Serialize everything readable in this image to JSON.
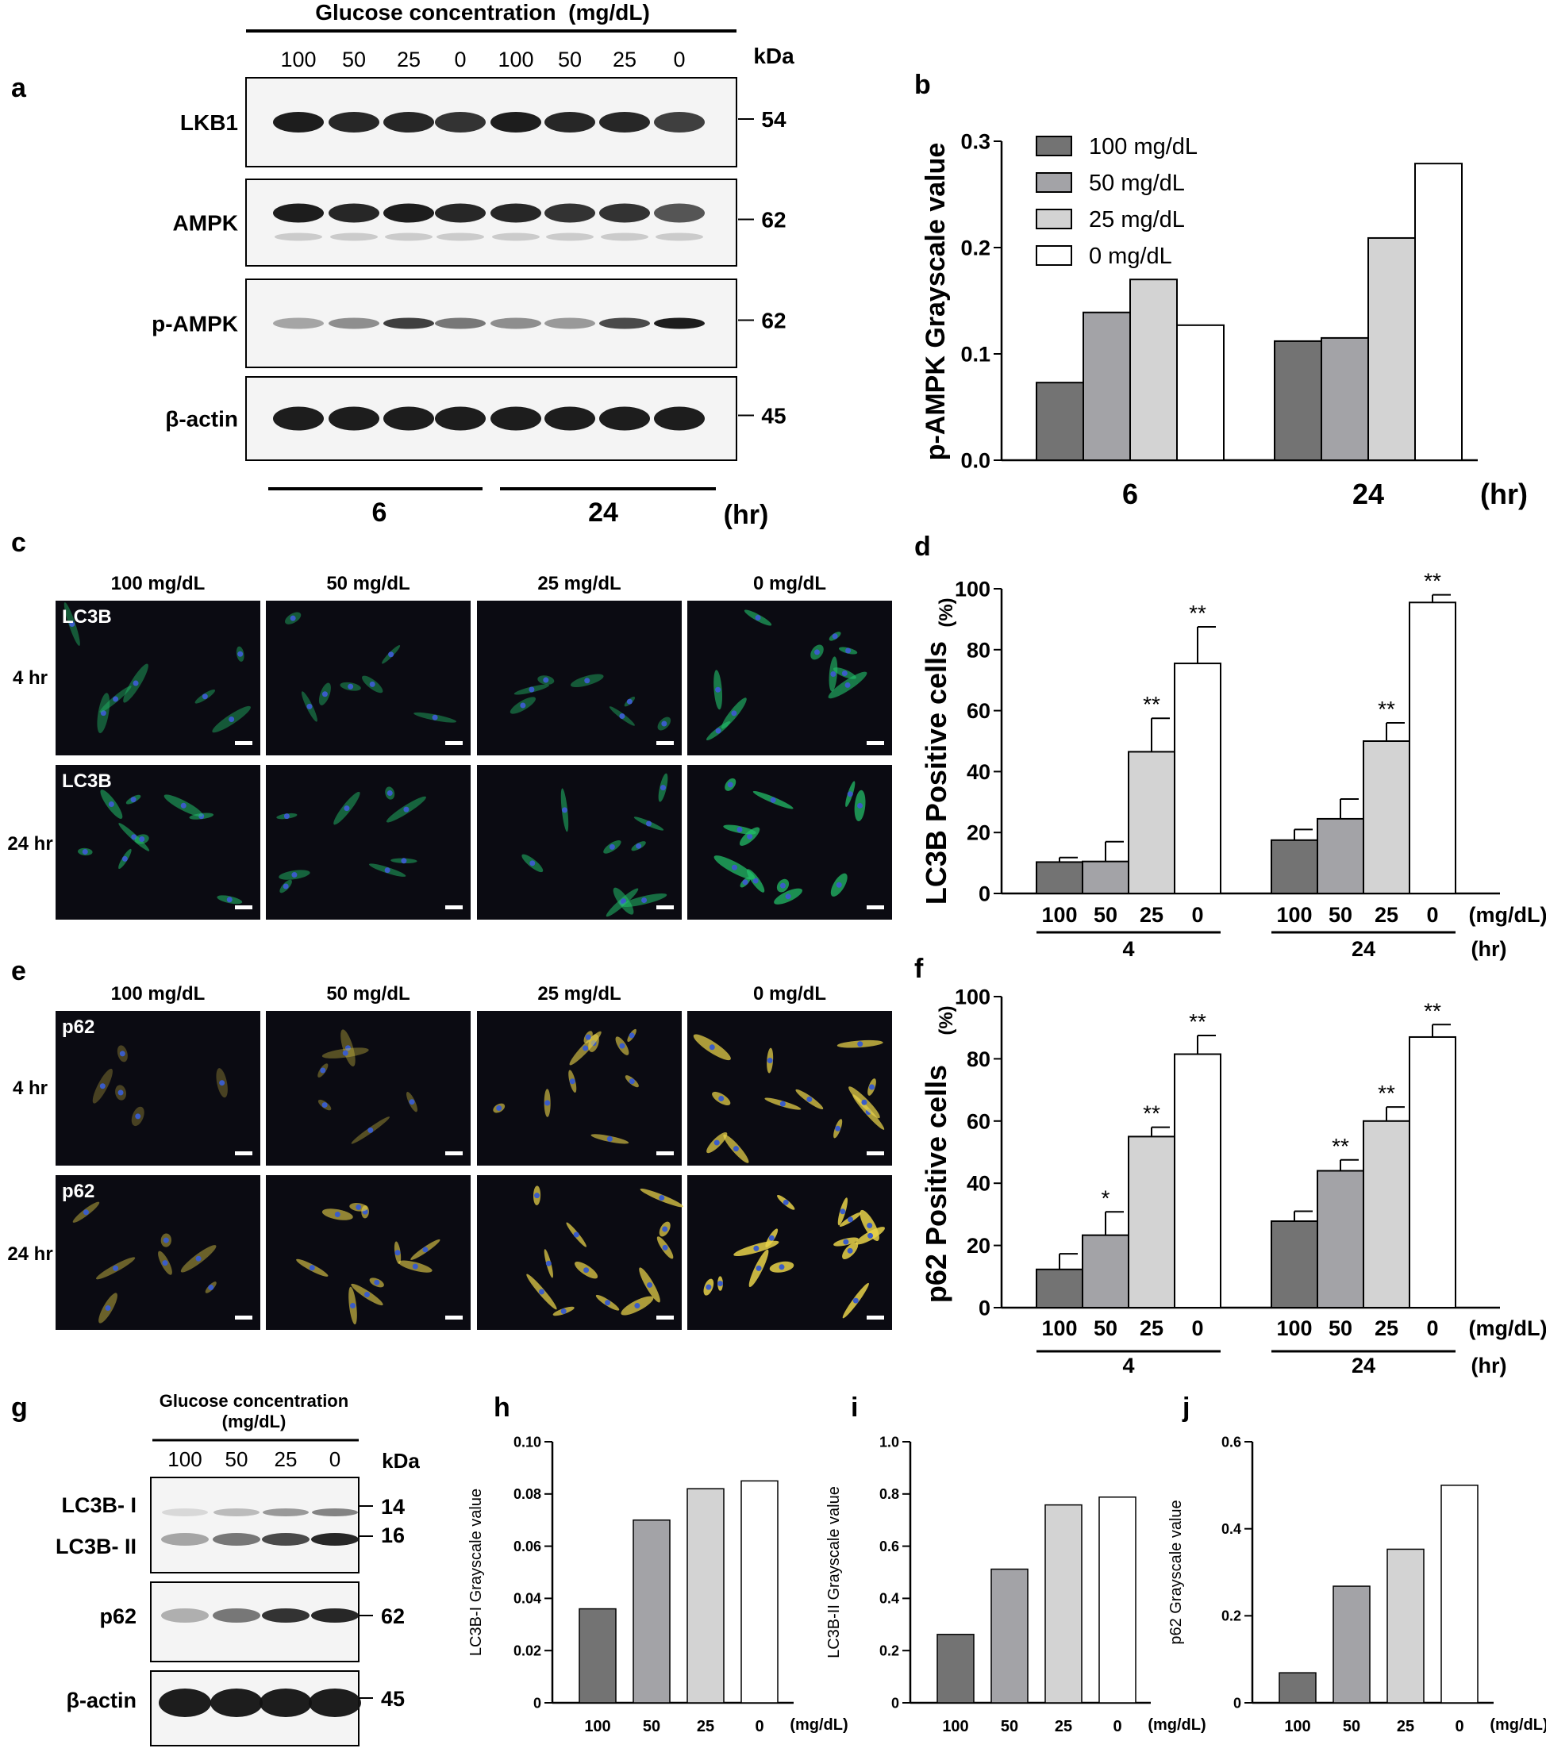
{
  "palette": {
    "bar_fills": [
      "#737373",
      "#a3a3a7",
      "#d3d3d3",
      "#ffffff"
    ],
    "blot_background": "#f4f4f4",
    "blot_band": "#111111",
    "micrograph_background": "#0b0b12",
    "lc3b_stain": "#22c06a",
    "nucleus_stain": "#3a5cc8",
    "p62_stain": "#e8d24a"
  },
  "panels": {
    "a": "a",
    "b": "b",
    "c": "c",
    "d": "d",
    "e": "e",
    "f": "f",
    "g": "g",
    "h": "h",
    "i": "i",
    "j": "j"
  },
  "blot_a": {
    "header": "Glucose concentration  (mg/dL)",
    "lanes": [
      "100",
      "50",
      "25",
      "0",
      "100",
      "50",
      "25",
      "0"
    ],
    "kda_label": "kDa",
    "rows": [
      {
        "name": "LKB1",
        "kda": "54"
      },
      {
        "name": "AMPK",
        "kda": "62"
      },
      {
        "name": "p-AMPK",
        "kda": "62"
      },
      {
        "name": "β-actin",
        "kda": "45"
      }
    ],
    "time_groups": [
      "6",
      "24"
    ],
    "time_unit": "(hr)"
  },
  "micro_c": {
    "columns": [
      "100 mg/dL",
      "50 mg/dL",
      "25 mg/dL",
      "0 mg/dL"
    ],
    "rows": [
      "4 hr",
      "24 hr"
    ],
    "stain": "LC3B"
  },
  "micro_e": {
    "columns": [
      "100 mg/dL",
      "50 mg/dL",
      "25 mg/dL",
      "0 mg/dL"
    ],
    "rows": [
      "4 hr",
      "24 hr"
    ],
    "stain": "p62"
  },
  "blot_g": {
    "header_line1": "Glucose concentration",
    "header_line2": "(mg/dL)",
    "lanes": [
      "100",
      "50",
      "25",
      "0"
    ],
    "kda_label": "kDa",
    "rows": [
      {
        "name": "LC3B- I",
        "kda": "14"
      },
      {
        "name": "LC3B- II",
        "kda": "16"
      },
      {
        "name": "p62",
        "kda": "62"
      },
      {
        "name": "β-actin",
        "kda": "45"
      }
    ]
  },
  "chart_data": [
    {
      "panel": "b",
      "type": "bar",
      "categories": [
        "6",
        "24"
      ],
      "x_unit": "(hr)",
      "ylabel": "p-AMPK Grayscale value",
      "ylim": [
        0,
        0.3
      ],
      "yticks": [
        "0.0",
        "0.1",
        "0.2",
        "0.3"
      ],
      "legend_position": "top-left",
      "series": [
        {
          "name": "100 mg/dL",
          "values": [
            0.073,
            0.112
          ]
        },
        {
          "name": "50 mg/dL",
          "values": [
            0.139,
            0.115
          ]
        },
        {
          "name": "25 mg/dL",
          "values": [
            0.17,
            0.209
          ]
        },
        {
          "name": "0 mg/dL",
          "values": [
            0.127,
            0.279
          ]
        }
      ]
    },
    {
      "panel": "d",
      "type": "bar",
      "groups": [
        "4",
        "24"
      ],
      "group_unit": "(hr)",
      "categories": [
        "100",
        "50",
        "25",
        "0"
      ],
      "category_unit": "(mg/dL)",
      "ylabel": "LC3B Positive cells",
      "ylabel_unit": "(%)",
      "ylim": [
        0,
        100
      ],
      "yticks": [
        "0",
        "20",
        "40",
        "60",
        "80",
        "100"
      ],
      "series": [
        {
          "values": [
            10.3,
            10.5,
            46.5,
            75.5
          ],
          "errors": [
            1.5,
            6.5,
            11,
            12
          ],
          "significance": [
            "",
            "",
            "**",
            "**"
          ]
        },
        {
          "values": [
            17.5,
            24.5,
            50,
            95.5
          ],
          "errors": [
            3.5,
            6.5,
            6,
            2.5
          ],
          "significance": [
            "",
            "",
            "**",
            "**"
          ]
        }
      ]
    },
    {
      "panel": "f",
      "type": "bar",
      "groups": [
        "4",
        "24"
      ],
      "group_unit": "(hr)",
      "categories": [
        "100",
        "50",
        "25",
        "0"
      ],
      "category_unit": "(mg/dL)",
      "ylabel": "p62 Positive cells",
      "ylabel_unit": "(%)",
      "ylim": [
        0,
        100
      ],
      "yticks": [
        "0",
        "20",
        "40",
        "60",
        "80",
        "100"
      ],
      "series": [
        {
          "values": [
            12.3,
            23.3,
            55,
            81.5
          ],
          "errors": [
            5,
            7.5,
            3,
            6
          ],
          "significance": [
            "",
            "*",
            "**",
            "**"
          ]
        },
        {
          "values": [
            27.8,
            44,
            60,
            87
          ],
          "errors": [
            3.2,
            3.5,
            4.5,
            4
          ],
          "significance": [
            "",
            "**",
            "**",
            "**"
          ]
        }
      ]
    },
    {
      "panel": "h",
      "type": "bar",
      "categories": [
        "100",
        "50",
        "25",
        "0"
      ],
      "x_unit": "(mg/dL)",
      "ylabel": "LC3B-I Grayscale value",
      "ylim": [
        0,
        0.1
      ],
      "yticks": [
        "0",
        "0.02",
        "0.04",
        "0.06",
        "0.08",
        "0.10"
      ],
      "values": [
        0.036,
        0.07,
        0.082,
        0.085
      ]
    },
    {
      "panel": "i",
      "type": "bar",
      "categories": [
        "100",
        "50",
        "25",
        "0"
      ],
      "x_unit": "(mg/dL)",
      "ylabel": "LC3B-II Grayscale value",
      "ylim": [
        0,
        1.0
      ],
      "yticks": [
        "0",
        "0.2",
        "0.4",
        "0.6",
        "0.8",
        "1.0"
      ],
      "values": [
        0.262,
        0.512,
        0.758,
        0.788
      ]
    },
    {
      "panel": "j",
      "type": "bar",
      "categories": [
        "100",
        "50",
        "25",
        "0"
      ],
      "x_unit": "(mg/dL)",
      "ylabel": "p62 Grayscale value",
      "ylim": [
        0,
        0.6
      ],
      "yticks": [
        "0",
        "0.2",
        "0.4",
        "0.6"
      ],
      "values": [
        0.069,
        0.268,
        0.353,
        0.5
      ]
    }
  ]
}
